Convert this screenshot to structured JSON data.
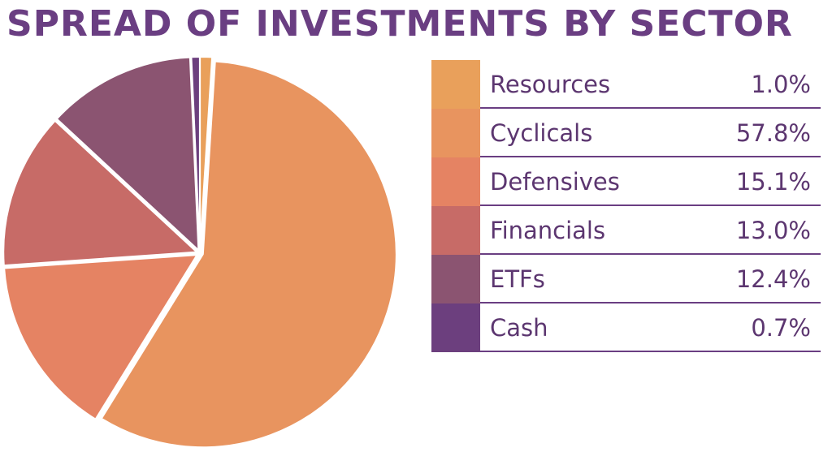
{
  "chart_data": {
    "type": "pie",
    "title": "SPREAD OF INVESTMENTS BY SECTOR",
    "categories": [
      "Resources",
      "Cyclicals",
      "Defensives",
      "Financials",
      "ETFs",
      "Cash"
    ],
    "values": [
      1.0,
      57.8,
      15.1,
      13.0,
      12.4,
      0.7
    ],
    "value_labels": [
      "1.0%",
      "57.8%",
      "15.1%",
      "13.0%",
      "12.4%",
      "0.7%"
    ],
    "colors": [
      "#e9a05b",
      "#e8945f",
      "#e58363",
      "#c76b67",
      "#8b5471",
      "#6c3f7e"
    ],
    "legend_placement": "right"
  }
}
